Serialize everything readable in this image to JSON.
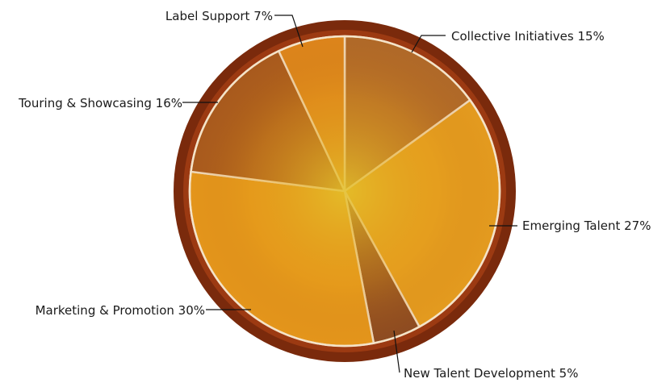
{
  "chart_data": {
    "type": "pie",
    "title": "",
    "slices": [
      {
        "label": "Collective Initiatives",
        "value": 15,
        "text": "Collective Initiatives  15%"
      },
      {
        "label": "Emerging Talent",
        "value": 27,
        "text": "Emerging Talent  27%"
      },
      {
        "label": "New Talent Development",
        "value": 5,
        "text": "New Talent Development  5%"
      },
      {
        "label": "Marketing & Promotion",
        "value": 30,
        "text": "Marketing & Promotion 30%"
      },
      {
        "label": "Touring & Showcasing",
        "value": 16,
        "text": "Touring & Showcasing  16%"
      },
      {
        "label": "Label Support",
        "value": 7,
        "text": "Label Support  7%"
      }
    ],
    "start_angle_deg": 0,
    "direction": "clockwise",
    "legend": "none (direct labels with leader lines)"
  },
  "colors": {
    "rim": "#7a2a0c",
    "separator": "#f4e3c8",
    "slices": [
      "#b06a2a",
      "#e8a020",
      "#8b4a22",
      "#e89a1c",
      "#a85a1e",
      "#e0881c"
    ]
  }
}
